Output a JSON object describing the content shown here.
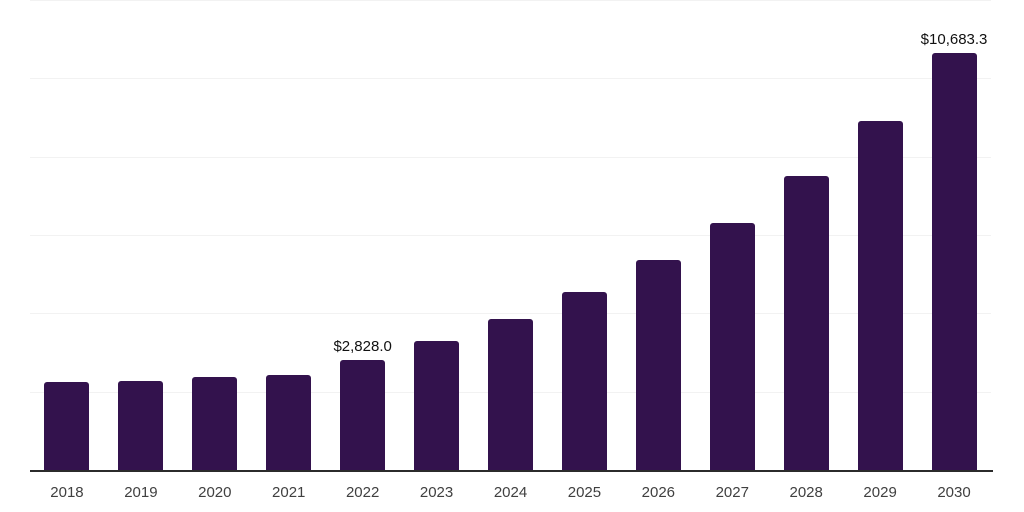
{
  "chart_data": {
    "type": "bar",
    "title": "",
    "xlabel": "",
    "ylabel": "",
    "categories": [
      "2018",
      "2019",
      "2020",
      "2021",
      "2022",
      "2023",
      "2024",
      "2025",
      "2026",
      "2027",
      "2028",
      "2029",
      "2030"
    ],
    "values": [
      2270,
      2295,
      2395,
      2445,
      2828.0,
      3310,
      3875,
      4560,
      5380,
      6345,
      7520,
      8945,
      10683.3
    ],
    "data_labels": {
      "2022": "$2,828.0",
      "2030": "$10,683.3"
    },
    "ylim": [
      0,
      12000
    ],
    "gridline_step": 2000,
    "grid": true,
    "legend": false,
    "y_tick_labels_visible": false,
    "colors": {
      "bar": "#33124d",
      "grid_line": "#f2f2f2",
      "axis_line": "#2b2b2b",
      "tick_label": "#404040",
      "value_label": "#111111",
      "background": "#ffffff"
    }
  }
}
